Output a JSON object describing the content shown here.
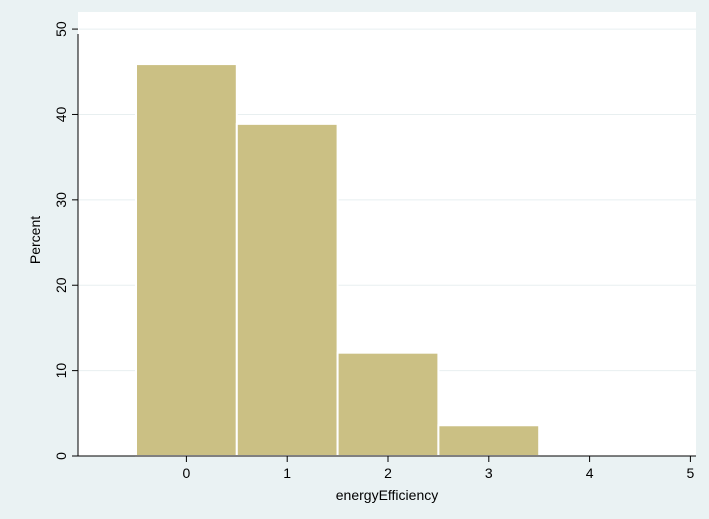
{
  "chart_data": {
    "type": "bar",
    "title": "",
    "xlabel": "energyEfficiency",
    "ylabel": "Percent",
    "categories": [
      "0",
      "1",
      "2",
      "3",
      "4",
      "5"
    ],
    "x": [
      0,
      1,
      2,
      3,
      4,
      5
    ],
    "values": [
      45.9,
      38.9,
      12.1,
      3.6,
      0,
      0
    ],
    "xlim": [
      -1,
      5.1
    ],
    "ylim": [
      0,
      52
    ],
    "xticks": [
      0,
      1,
      2,
      3,
      4,
      5
    ],
    "yticks": [
      0,
      10,
      20,
      30,
      40,
      50
    ],
    "grid": true,
    "legend": "none"
  },
  "colors": {
    "background": "#eaf2f3",
    "plot_background": "#ffffff",
    "bar_fill": "#cbc084",
    "bar_stroke": "#ffffff",
    "grid": "#e8eff0",
    "axis": "#000000"
  }
}
